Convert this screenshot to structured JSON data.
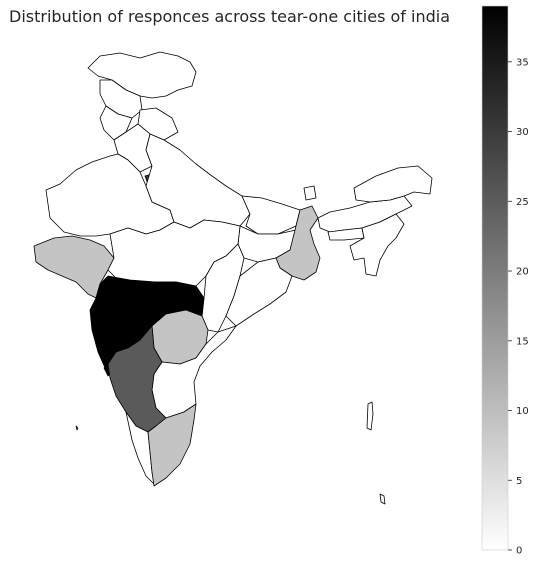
{
  "title": "Distribution of responces across tear-one cities of india",
  "colorbar": {
    "min": 0,
    "max": 39,
    "ticks": [
      "0",
      "5",
      "10",
      "15",
      "20",
      "25",
      "30",
      "35"
    ],
    "cmap": [
      "#ffffff",
      "#000000"
    ]
  },
  "legend_position": "right",
  "regions": [
    {
      "name": "Gujarat",
      "value": 13
    },
    {
      "name": "Maharashtra",
      "value": 39
    },
    {
      "name": "Telangana",
      "value": 13
    },
    {
      "name": "Karnataka",
      "value": 27
    },
    {
      "name": "Tamil Nadu",
      "value": 13
    },
    {
      "name": "West Bengal",
      "value": 15
    },
    {
      "name": "Goa",
      "value": 39
    },
    {
      "name": "Delhi",
      "value": 25
    }
  ]
}
